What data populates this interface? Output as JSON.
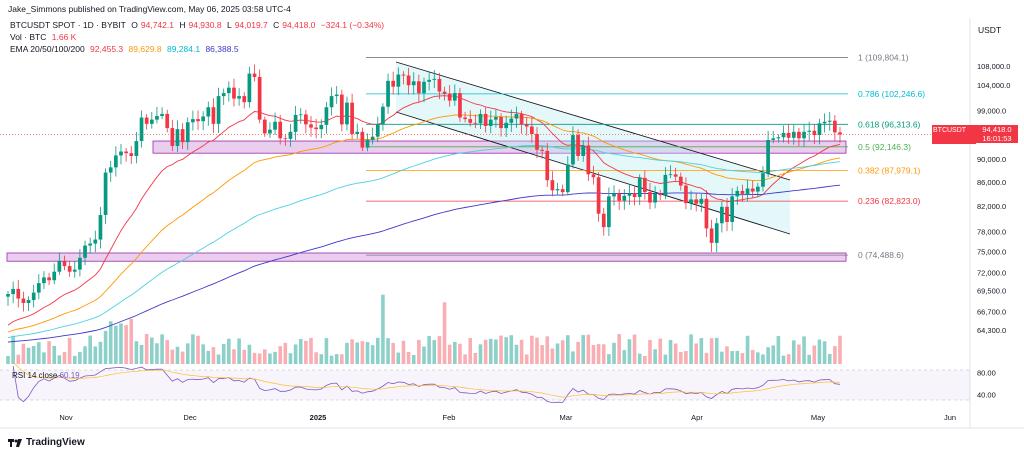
{
  "header": {
    "publisher": "Jake_Simmons published on TradingView.com, May 06, 2025 03:58 UTC-4"
  },
  "legend": {
    "symbol": "BTCUSDT SPOT · 1D · BYBIT",
    "open_label": "O",
    "open": "94,742.1",
    "high_label": "H",
    "high": "94,930.8",
    "low_label": "L",
    "low": "94,019.7",
    "close_label": "C",
    "close": "94,418.0",
    "change": "−324.1 (−0.34%)",
    "vol_label": "Vol · BTC",
    "vol": "1.66 K",
    "ema_label": "EMA 20/50/100/200",
    "ema20": "92,455.3",
    "ema50": "89,629.8",
    "ema100": "89,284.1",
    "ema200": "86,388.5"
  },
  "colors": {
    "up": "#089981",
    "down": "#f23645",
    "ema20": "#f23645",
    "ema50": "#ff9800",
    "ema100": "#4dd0e1",
    "ema200": "#3f37c9",
    "channel_fill": "#b2ebf2",
    "zone_fill": "#e1bee7",
    "zone_stroke": "#9c27b0"
  },
  "currency": "USDT",
  "price_tag": {
    "symbol": "BTCUSDT",
    "price": "94,418.0",
    "countdown": "16:01:53"
  },
  "rsi": {
    "label": "RSI 14 close",
    "value": "60.19"
  },
  "brand": "TradingView",
  "chart_data": {
    "type": "candlestick",
    "x_ticks": [
      "Nov",
      "Dec",
      "2025",
      "Feb",
      "Mar",
      "Apr",
      "May",
      "Jun"
    ],
    "y_ticks": [
      "108,000.0",
      "104,000.0",
      "99,000.0",
      "94,000.0",
      "90,000.0",
      "86,000.0",
      "82,000.0",
      "78,000.0",
      "75,000.0",
      "72,000.0",
      "69,500.0",
      "66,700.0",
      "64,300.0"
    ],
    "rsi_ticks": [
      "80.00",
      "40.00"
    ],
    "fib_levels": [
      {
        "ratio": "1",
        "price": "(109,804.1)",
        "color": "#787b86"
      },
      {
        "ratio": "0.786",
        "price": "(102,246.6)",
        "color": "#00bcd4"
      },
      {
        "ratio": "0.618",
        "price": "(96,313.6)",
        "color": "#089981"
      },
      {
        "ratio": "0.5",
        "price": "(92,146.3)",
        "color": "#4caf50"
      },
      {
        "ratio": "0.382",
        "price": "(87,979.1)",
        "color": "#ff9800"
      },
      {
        "ratio": "0.236",
        "price": "(82,823.0)",
        "color": "#f23645"
      },
      {
        "ratio": "0",
        "price": "(74,488.6)",
        "color": "#787b86"
      }
    ],
    "fib_values": [
      109804.1,
      102246.6,
      96313.6,
      92146.3,
      87979.1,
      82823.0,
      74488.6
    ],
    "zones": [
      {
        "from": 91000,
        "to": 93200
      },
      {
        "from": 73600,
        "to": 74800
      }
    ],
    "closes": [
      69000,
      69700,
      68400,
      67800,
      68200,
      69200,
      70500,
      71300,
      70900,
      72100,
      73600,
      72900,
      72100,
      72400,
      74100,
      75900,
      76200,
      76800,
      80600,
      87600,
      88500,
      90600,
      91300,
      91000,
      90500,
      93200,
      97600,
      96400,
      97200,
      97900,
      98300,
      95600,
      92300,
      95400,
      93000,
      96700,
      97300,
      96900,
      97800,
      99600,
      96400,
      101800,
      102400,
      103500,
      101300,
      101800,
      100600,
      106400,
      105700,
      97200,
      94600,
      95300,
      96800,
      93700,
      93600,
      94900,
      98100,
      98200,
      96300,
      95700,
      95400,
      96200,
      99600,
      101800,
      102100,
      96300,
      100500,
      94500,
      94900,
      92000,
      93400,
      94000,
      96300,
      99700,
      104900,
      103700,
      106200,
      106000,
      104000,
      104800,
      102400,
      104700,
      105100,
      105300,
      102700,
      102300,
      100900,
      102400,
      97600,
      97300,
      96600,
      96500,
      98300,
      96000,
      97200,
      97700,
      95600,
      96600,
      97400,
      98300,
      96300,
      95900,
      94500,
      91600,
      91400,
      86300,
      84600,
      84800,
      84300,
      89000,
      94300,
      90500,
      92400,
      87300,
      86800,
      80800,
      78700,
      83600,
      84100,
      82900,
      83700,
      84100,
      83500,
      86700,
      84300,
      82600,
      84100,
      83800,
      87200,
      87300,
      86900,
      85400,
      82500,
      83100,
      82400,
      83200,
      78500,
      76300,
      79300,
      81900,
      79500,
      83600,
      84500,
      84000,
      84900,
      84400,
      85200,
      87500,
      93400,
      93700,
      93900,
      94700,
      93800,
      94900,
      93700,
      94900,
      95100,
      94300,
      96500,
      96800,
      97000,
      94800,
      94400
    ]
  }
}
